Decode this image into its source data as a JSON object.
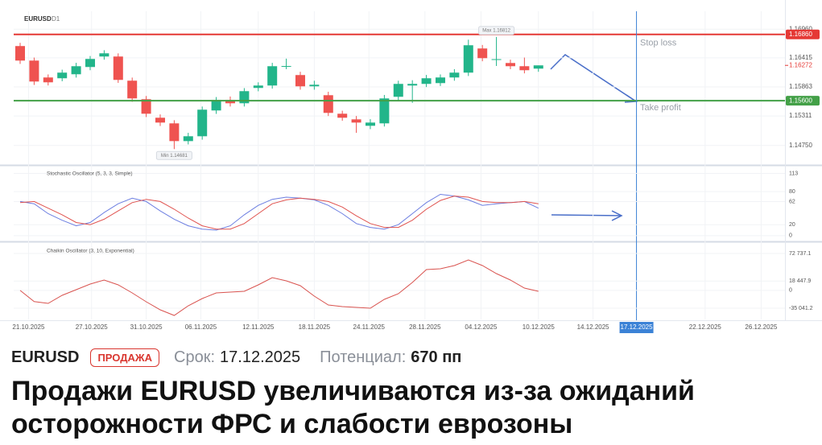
{
  "chart_data": [
    {
      "type": "candlestick",
      "title": "EURUSD",
      "subtitle": "D1",
      "series": [
        {
          "up_color": "#22b58a",
          "down_color": "#ef5350",
          "open": [
            1.16639,
            1.16363,
            1.16042,
            1.16027,
            1.16103,
            1.16241,
            1.1644,
            1.1644,
            1.15981,
            1.15629,
            1.15277,
            1.1517,
            1.14833,
            1.14925,
            1.15415,
            1.15614,
            1.15552,
            1.15843,
            1.15889,
            1.16256,
            1.16088,
            1.15874,
            1.15705,
            1.15353,
            1.15246,
            1.15124,
            1.1517,
            1.15675,
            1.15889,
            1.1592,
            1.15935,
            1.16042,
            1.16134,
            1.16593,
            1.16379,
            1.16317,
            1.16256,
            1.1621
          ],
          "high": [
            1.167,
            1.1642,
            1.161,
            1.1619,
            1.1632,
            1.1645,
            1.1656,
            1.165,
            1.1604,
            1.1569,
            1.1534,
            1.1523,
            1.1499,
            1.1549,
            1.1567,
            1.1568,
            1.1584,
            1.1595,
            1.1632,
            1.164,
            1.1615,
            1.1598,
            1.1577,
            1.1541,
            1.1531,
            1.1525,
            1.1571,
            1.1598,
            1.1599,
            1.1609,
            1.161,
            1.162,
            1.1676,
            1.1666,
            1.16812,
            1.1638,
            1.1642,
            1.1627
          ],
          "low": [
            1.163,
            1.159,
            1.1589,
            1.1597,
            1.1604,
            1.1618,
            1.1638,
            1.1594,
            1.1558,
            1.1529,
            1.1512,
            1.14681,
            1.1477,
            1.1486,
            1.1535,
            1.1549,
            1.1549,
            1.1578,
            1.1583,
            1.162,
            1.1581,
            1.1581,
            1.1531,
            1.1522,
            1.1499,
            1.1506,
            1.1511,
            1.1561,
            1.1556,
            1.1586,
            1.1588,
            1.1598,
            1.1607,
            1.1635,
            1.1626,
            1.162,
            1.1612,
            1.1615
          ],
          "close": [
            1.16363,
            1.15965,
            1.1595,
            1.16134,
            1.16256,
            1.16394,
            1.16501,
            1.15996,
            1.15644,
            1.15353,
            1.15185,
            1.14833,
            1.14925,
            1.1543,
            1.15614,
            1.15552,
            1.15782,
            1.15889,
            1.16256,
            1.1626,
            1.15874,
            1.15904,
            1.15369,
            1.15277,
            1.15185,
            1.15185,
            1.15644,
            1.1592,
            1.1592,
            1.16027,
            1.16042,
            1.16134,
            1.16654,
            1.16409,
            1.1639,
            1.16256,
            1.1618,
            1.16272
          ]
        }
      ],
      "xlim": [
        -0.46,
        54.6
      ],
      "xticks": [
        {
          "value": 0.6,
          "label": "21.10.2025"
        },
        {
          "value": 5.1,
          "label": "27.10.2025"
        },
        {
          "value": 9,
          "label": "31.10.2025"
        },
        {
          "value": 12.9,
          "label": "06.11.2025"
        },
        {
          "value": 17,
          "label": "12.11.2025"
        },
        {
          "value": 21,
          "label": "18.11.2025"
        },
        {
          "value": 24.9,
          "label": "24.11.2025"
        },
        {
          "value": 28.9,
          "label": "28.11.2025"
        },
        {
          "value": 32.9,
          "label": "04.12.2025"
        },
        {
          "value": 37,
          "label": "10.12.2025"
        },
        {
          "value": 40.9,
          "label": "14.12.2025"
        },
        {
          "value": 48.9,
          "label": "22.12.2025"
        },
        {
          "value": 52.9,
          "label": "26.12.2025"
        }
      ],
      "ylim": [
        1.1441,
        1.173
      ],
      "yticks": [
        {
          "value": 1.1696,
          "label": "1.16960"
        },
        1.16415,
        1.15863,
        1.15311,
        {
          "value": 1.1475,
          "label": "1.14750"
        }
      ],
      "hlines": [
        {
          "name": "Stop loss",
          "value": 1.1686,
          "label": "1.16860",
          "color": "#e53935"
        },
        {
          "name": "Take profit",
          "value": 1.156,
          "label": "1.15600",
          "color": "#43a047"
        }
      ],
      "last_price": {
        "value": 1.16272,
        "label": "1.16272"
      },
      "annotations": [
        {
          "text": "Max 1.16812",
          "x": 34,
          "y": 1.16812,
          "side": "above"
        },
        {
          "text": "Min 1.14681",
          "x": 11,
          "y": 1.14681,
          "side": "below"
        }
      ],
      "highlight_date": {
        "value": 44,
        "label": "17.12.2025",
        "color": "#3b82d6"
      }
    },
    {
      "type": "line",
      "title": "Stochastic Oscillator (5, 3, 3, Simple)",
      "series": [
        {
          "color": "#6c7ee1",
          "values": [
            62,
            58,
            40,
            28,
            18,
            24,
            42,
            58,
            68,
            62,
            45,
            30,
            18,
            12,
            10,
            18,
            38,
            55,
            66,
            70,
            68,
            65,
            55,
            40,
            22,
            15,
            12,
            20,
            40,
            60,
            75,
            72,
            65,
            55,
            58,
            60,
            62,
            50
          ]
        },
        {
          "color": "#e0534f",
          "values": [
            60,
            62,
            50,
            38,
            24,
            20,
            30,
            45,
            60,
            66,
            62,
            48,
            32,
            18,
            12,
            12,
            22,
            40,
            58,
            65,
            68,
            66,
            62,
            52,
            36,
            22,
            15,
            15,
            28,
            48,
            64,
            72,
            70,
            62,
            60,
            60,
            62,
            58
          ]
        }
      ],
      "ylim": [
        -6,
        124
      ],
      "yticks": [
        0,
        20,
        62,
        80,
        113
      ]
    },
    {
      "type": "line",
      "title": "Chaikin Oscillator (3, 10, Exponential)",
      "series": [
        {
          "color": "#d9534f",
          "values": [
            0,
            -22000,
            -25500,
            -9700,
            1400,
            12500,
            20400,
            11000,
            -5000,
            -22300,
            -38200,
            -49300,
            -30300,
            -16000,
            -4900,
            -3300,
            -1700,
            11000,
            25200,
            18900,
            9400,
            -11300,
            -28700,
            -31900,
            -33400,
            -35000,
            -17600,
            -6500,
            15700,
            41100,
            42600,
            49000,
            60000,
            49000,
            33100,
            20400,
            4600,
            -1700
          ]
        }
      ],
      "ylim": [
        -57231,
        90172
      ],
      "yticks": [
        {
          "value": 72737.1,
          "label": "72 737.1"
        },
        {
          "value": 18447.9,
          "label": "18 447.9"
        },
        0,
        {
          "value": -35041.2,
          "label": "-35 041.2"
        }
      ]
    }
  ],
  "header": {
    "symbol": "EURUSD",
    "badge": "ПРОДАЖА",
    "term_label": "Срок:",
    "term": "17.12.2025",
    "potential_label": "Потенциал:",
    "potential": "670 пп",
    "headline": "Продажи EURUSD увеличиваются из-за ожиданий осторожности ФРС и слабости еврозоны"
  }
}
